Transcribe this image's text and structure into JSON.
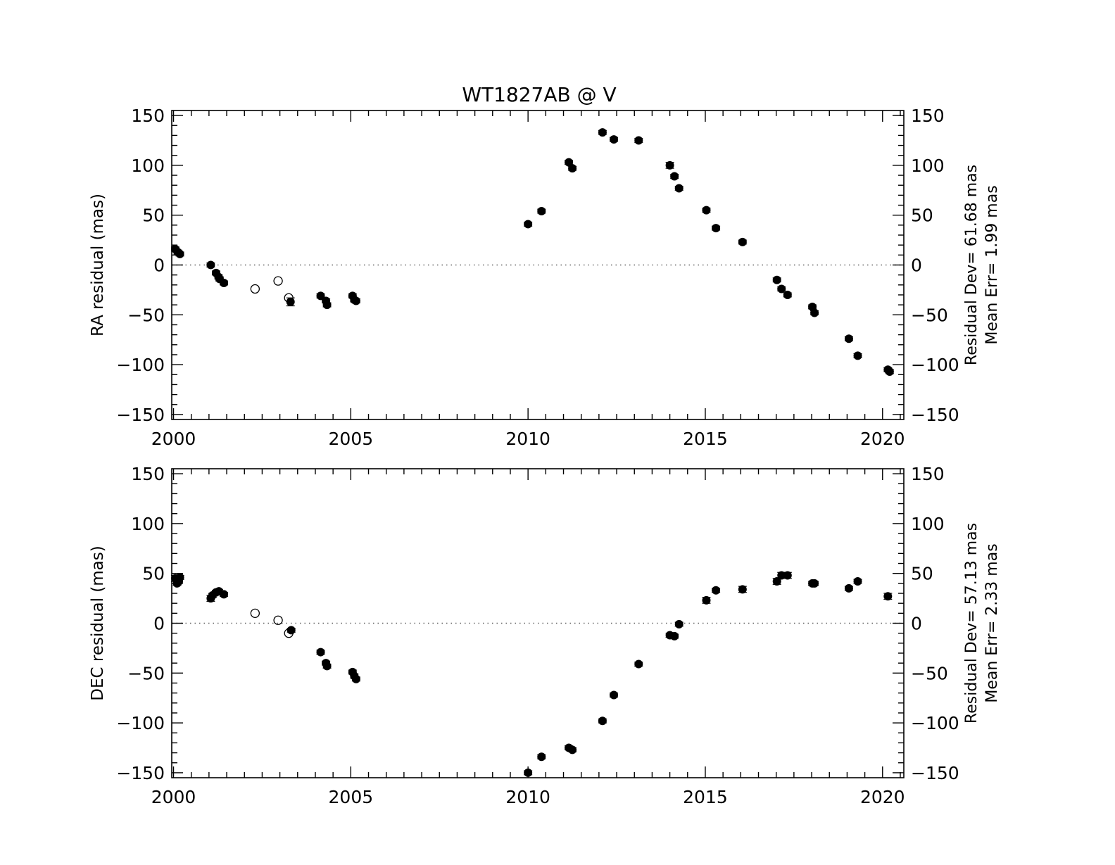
{
  "title": "WT1827AB @ V",
  "chart_data": [
    {
      "type": "scatter",
      "ylabel": "RA residual (mas)",
      "xlabel": "",
      "xlim": [
        1999.95,
        2020.6
      ],
      "ylim": [
        -155,
        155
      ],
      "xticks": [
        2000,
        2005,
        2010,
        2015,
        2020
      ],
      "yticks": [
        -150,
        -100,
        -50,
        0,
        50,
        100,
        150
      ],
      "tick_labels_y": [
        "−150",
        "−100",
        "−50",
        "0",
        "50",
        "100",
        "150"
      ],
      "grid": false,
      "zero_line": "dotted",
      "side_text": [
        "Residual Dev= 61.68 mas",
        "Mean Err= 1.99 mas"
      ],
      "series": [
        {
          "marker": "filled-circle",
          "points": [
            [
              2000.05,
              16,
              2
            ],
            [
              2000.12,
              13,
              2
            ],
            [
              2000.18,
              11,
              2
            ],
            [
              2001.05,
              0,
              2
            ],
            [
              2001.2,
              -8,
              2
            ],
            [
              2001.27,
              -12,
              2
            ],
            [
              2001.3,
              -14,
              2
            ],
            [
              2001.42,
              -18,
              2
            ],
            [
              2003.3,
              -37,
              4
            ],
            [
              2004.15,
              -31,
              2
            ],
            [
              2004.3,
              -36,
              2
            ],
            [
              2004.33,
              -40,
              2
            ],
            [
              2005.05,
              -31,
              2
            ],
            [
              2005.1,
              -35,
              2
            ],
            [
              2005.15,
              -36,
              2
            ],
            [
              2010.0,
              41,
              2
            ],
            [
              2010.38,
              54,
              2
            ],
            [
              2011.15,
              103,
              2
            ],
            [
              2011.25,
              97,
              2
            ],
            [
              2012.1,
              133,
              2
            ],
            [
              2012.42,
              126,
              2
            ],
            [
              2013.12,
              125,
              2
            ],
            [
              2014.0,
              100,
              3
            ],
            [
              2014.13,
              89,
              2
            ],
            [
              2014.26,
              77,
              2
            ],
            [
              2015.03,
              55,
              2
            ],
            [
              2015.3,
              37,
              2
            ],
            [
              2016.05,
              23,
              2
            ],
            [
              2017.02,
              -15,
              2
            ],
            [
              2017.15,
              -24,
              2
            ],
            [
              2017.32,
              -30,
              2
            ],
            [
              2018.02,
              -42,
              2
            ],
            [
              2018.08,
              -48,
              2
            ],
            [
              2019.05,
              -74,
              2
            ],
            [
              2019.3,
              -91,
              2
            ],
            [
              2020.15,
              -105,
              2
            ],
            [
              2020.2,
              -107,
              2
            ]
          ]
        },
        {
          "marker": "open-circle",
          "points": [
            [
              2002.3,
              -24
            ],
            [
              2002.95,
              -16
            ],
            [
              2003.25,
              -33
            ]
          ]
        }
      ]
    },
    {
      "type": "scatter",
      "ylabel": "DEC residual (mas)",
      "xlabel": "",
      "xlim": [
        1999.95,
        2020.6
      ],
      "ylim": [
        -155,
        155
      ],
      "xticks": [
        2000,
        2005,
        2010,
        2015,
        2020
      ],
      "yticks": [
        -150,
        -100,
        -50,
        0,
        50,
        100,
        150
      ],
      "tick_labels_y": [
        "−150",
        "−100",
        "−50",
        "0",
        "50",
        "100",
        "150"
      ],
      "grid": false,
      "zero_line": "dotted",
      "side_text": [
        "Residual Dev= 57.13 mas",
        "Mean Err= 2.33 mas"
      ],
      "series": [
        {
          "marker": "filled-circle",
          "points": [
            [
              2000.05,
              45,
              3
            ],
            [
              2000.1,
              40,
              2
            ],
            [
              2000.15,
              42,
              2
            ],
            [
              2000.18,
              46,
              2
            ],
            [
              2001.05,
              25,
              3
            ],
            [
              2001.1,
              28,
              2
            ],
            [
              2001.2,
              31,
              2
            ],
            [
              2001.28,
              32,
              2
            ],
            [
              2001.42,
              29,
              2
            ],
            [
              2003.32,
              -7,
              2
            ],
            [
              2004.15,
              -29,
              2
            ],
            [
              2004.3,
              -40,
              2
            ],
            [
              2004.33,
              -43,
              2
            ],
            [
              2005.05,
              -49,
              2
            ],
            [
              2005.1,
              -53,
              2
            ],
            [
              2005.15,
              -56,
              2
            ],
            [
              2010.0,
              -150,
              2
            ],
            [
              2010.38,
              -134,
              2
            ],
            [
              2011.15,
              -125,
              2
            ],
            [
              2011.25,
              -127,
              2
            ],
            [
              2012.1,
              -98,
              2
            ],
            [
              2012.42,
              -72,
              2
            ],
            [
              2013.12,
              -41,
              2
            ],
            [
              2014.0,
              -12,
              2
            ],
            [
              2014.13,
              -13,
              2
            ],
            [
              2014.26,
              -1,
              2
            ],
            [
              2015.03,
              23,
              3
            ],
            [
              2015.3,
              33,
              2
            ],
            [
              2016.05,
              34,
              3
            ],
            [
              2017.02,
              42,
              3
            ],
            [
              2017.15,
              48,
              3
            ],
            [
              2017.32,
              48,
              3
            ],
            [
              2018.02,
              40,
              2
            ],
            [
              2018.08,
              40,
              2
            ],
            [
              2019.05,
              35,
              2
            ],
            [
              2019.3,
              42,
              2
            ],
            [
              2020.15,
              27,
              3
            ]
          ]
        },
        {
          "marker": "open-circle",
          "points": [
            [
              2002.3,
              10
            ],
            [
              2002.95,
              3
            ],
            [
              2003.25,
              -10
            ]
          ]
        }
      ]
    }
  ]
}
